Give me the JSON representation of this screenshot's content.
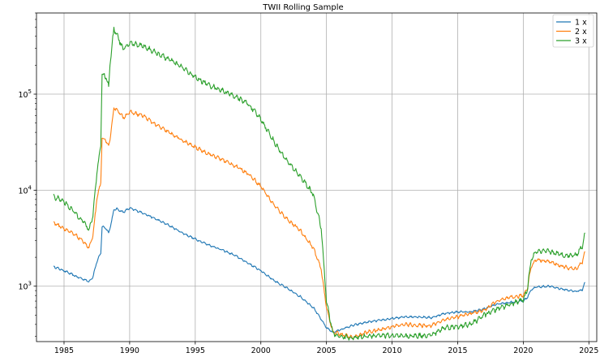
{
  "chart_data": {
    "type": "line",
    "title": "TWII Rolling Sample",
    "xlabel": "",
    "ylabel": "",
    "yscale": "log",
    "xlim": [
      1982.9,
      2025.6
    ],
    "ylim": [
      265,
      700000
    ],
    "grid": true,
    "legend_position": "top-right",
    "x_ticks": [
      "1985",
      "1990",
      "1995",
      "2000",
      "2005",
      "2010",
      "2015",
      "2020",
      "2025"
    ],
    "y_ticks": [
      {
        "value": 1000,
        "base": "10",
        "exp": "3"
      },
      {
        "value": 10000,
        "base": "10",
        "exp": "4"
      },
      {
        "value": 100000,
        "base": "10",
        "exp": "5"
      }
    ],
    "series": [
      {
        "name": "1 x",
        "color": "#1f77b4",
        "points": [
          [
            1984.2,
            1600
          ],
          [
            1985.0,
            1450
          ],
          [
            1986.0,
            1250
          ],
          [
            1986.5,
            1180
          ],
          [
            1986.9,
            1120
          ],
          [
            1987.2,
            1250
          ],
          [
            1987.5,
            1800
          ],
          [
            1987.8,
            2200
          ],
          [
            1987.9,
            4200
          ],
          [
            1988.2,
            4000
          ],
          [
            1988.4,
            3600
          ],
          [
            1988.5,
            4000
          ],
          [
            1988.8,
            6200
          ],
          [
            1989.0,
            6400
          ],
          [
            1989.5,
            5900
          ],
          [
            1990.0,
            6500
          ],
          [
            1991.0,
            5800
          ],
          [
            1992.0,
            5000
          ],
          [
            1993.0,
            4300
          ],
          [
            1994.0,
            3600
          ],
          [
            1995.0,
            3100
          ],
          [
            1996.0,
            2700
          ],
          [
            1997.0,
            2400
          ],
          [
            1998.0,
            2100
          ],
          [
            1999.0,
            1750
          ],
          [
            2000.0,
            1450
          ],
          [
            2001.0,
            1150
          ],
          [
            2002.0,
            950
          ],
          [
            2003.0,
            780
          ],
          [
            2004.0,
            600
          ],
          [
            2004.6,
            450
          ],
          [
            2005.0,
            370
          ],
          [
            2005.5,
            330
          ],
          [
            2006.0,
            350
          ],
          [
            2007.0,
            390
          ],
          [
            2008.0,
            420
          ],
          [
            2009.0,
            440
          ],
          [
            2010.0,
            460
          ],
          [
            2011.0,
            480
          ],
          [
            2012.0,
            480
          ],
          [
            2013.0,
            470
          ],
          [
            2014.0,
            520
          ],
          [
            2015.0,
            540
          ],
          [
            2016.0,
            540
          ],
          [
            2017.0,
            580
          ],
          [
            2018.0,
            650
          ],
          [
            2019.0,
            680
          ],
          [
            2020.0,
            700
          ],
          [
            2020.3,
            760
          ],
          [
            2020.6,
            920
          ],
          [
            2021.0,
            980
          ],
          [
            2022.0,
            1000
          ],
          [
            2023.0,
            930
          ],
          [
            2024.0,
            880
          ],
          [
            2024.5,
            920
          ],
          [
            2024.7,
            1100
          ]
        ]
      },
      {
        "name": "2 x",
        "color": "#ff7f0e",
        "points": [
          [
            1984.2,
            4600
          ],
          [
            1985.0,
            4000
          ],
          [
            1986.0,
            3300
          ],
          [
            1986.5,
            2900
          ],
          [
            1986.9,
            2500
          ],
          [
            1987.2,
            3300
          ],
          [
            1987.5,
            8000
          ],
          [
            1987.8,
            12000
          ],
          [
            1987.9,
            35000
          ],
          [
            1988.2,
            33000
          ],
          [
            1988.4,
            28000
          ],
          [
            1988.5,
            33000
          ],
          [
            1988.8,
            72000
          ],
          [
            1989.0,
            70000
          ],
          [
            1989.5,
            57000
          ],
          [
            1990.0,
            65000
          ],
          [
            1991.0,
            60000
          ],
          [
            1992.0,
            48000
          ],
          [
            1993.0,
            40000
          ],
          [
            1994.0,
            33000
          ],
          [
            1995.0,
            28000
          ],
          [
            1996.0,
            24000
          ],
          [
            1997.0,
            21000
          ],
          [
            1998.0,
            18000
          ],
          [
            1999.0,
            15000
          ],
          [
            2000.0,
            11000
          ],
          [
            2001.0,
            7000
          ],
          [
            2002.0,
            5000
          ],
          [
            2003.0,
            3800
          ],
          [
            2004.0,
            2500
          ],
          [
            2004.6,
            1500
          ],
          [
            2005.0,
            600
          ],
          [
            2005.5,
            330
          ],
          [
            2006.0,
            320
          ],
          [
            2007.0,
            290
          ],
          [
            2008.0,
            330
          ],
          [
            2009.0,
            350
          ],
          [
            2010.0,
            380
          ],
          [
            2011.0,
            400
          ],
          [
            2012.0,
            390
          ],
          [
            2013.0,
            390
          ],
          [
            2014.0,
            450
          ],
          [
            2015.0,
            480
          ],
          [
            2016.0,
            520
          ],
          [
            2017.0,
            560
          ],
          [
            2018.0,
            700
          ],
          [
            2019.0,
            760
          ],
          [
            2020.0,
            800
          ],
          [
            2020.3,
            950
          ],
          [
            2020.6,
            1600
          ],
          [
            2021.0,
            1900
          ],
          [
            2022.0,
            1800
          ],
          [
            2023.0,
            1600
          ],
          [
            2024.0,
            1500
          ],
          [
            2024.5,
            1800
          ],
          [
            2024.7,
            2300
          ]
        ]
      },
      {
        "name": "3 x",
        "color": "#2ca02c",
        "points": [
          [
            1984.2,
            8600
          ],
          [
            1985.0,
            7600
          ],
          [
            1986.0,
            5500
          ],
          [
            1986.5,
            4700
          ],
          [
            1986.9,
            3800
          ],
          [
            1987.2,
            5500
          ],
          [
            1987.5,
            15000
          ],
          [
            1987.8,
            30000
          ],
          [
            1987.9,
            165000
          ],
          [
            1988.2,
            150000
          ],
          [
            1988.4,
            120000
          ],
          [
            1988.5,
            200000
          ],
          [
            1988.8,
            480000
          ],
          [
            1989.0,
            430000
          ],
          [
            1989.5,
            290000
          ],
          [
            1990.0,
            340000
          ],
          [
            1991.0,
            320000
          ],
          [
            1992.0,
            270000
          ],
          [
            1993.0,
            230000
          ],
          [
            1994.0,
            190000
          ],
          [
            1995.0,
            150000
          ],
          [
            1996.0,
            125000
          ],
          [
            1997.0,
            110000
          ],
          [
            1998.0,
            95000
          ],
          [
            1999.0,
            80000
          ],
          [
            2000.0,
            55000
          ],
          [
            2001.0,
            32000
          ],
          [
            2002.0,
            20000
          ],
          [
            2003.0,
            14000
          ],
          [
            2004.0,
            9000
          ],
          [
            2004.6,
            4000
          ],
          [
            2005.0,
            700
          ],
          [
            2005.5,
            320
          ],
          [
            2006.0,
            300
          ],
          [
            2007.0,
            290
          ],
          [
            2008.0,
            300
          ],
          [
            2009.0,
            310
          ],
          [
            2010.0,
            305
          ],
          [
            2011.0,
            300
          ],
          [
            2012.0,
            305
          ],
          [
            2013.0,
            310
          ],
          [
            2014.0,
            370
          ],
          [
            2015.0,
            380
          ],
          [
            2016.0,
            400
          ],
          [
            2017.0,
            500
          ],
          [
            2018.0,
            580
          ],
          [
            2019.0,
            650
          ],
          [
            2020.0,
            720
          ],
          [
            2020.3,
            900
          ],
          [
            2020.6,
            1900
          ],
          [
            2021.0,
            2300
          ],
          [
            2022.0,
            2300
          ],
          [
            2023.0,
            2100
          ],
          [
            2024.0,
            2100
          ],
          [
            2024.5,
            2600
          ],
          [
            2024.7,
            3600
          ]
        ]
      }
    ]
  }
}
